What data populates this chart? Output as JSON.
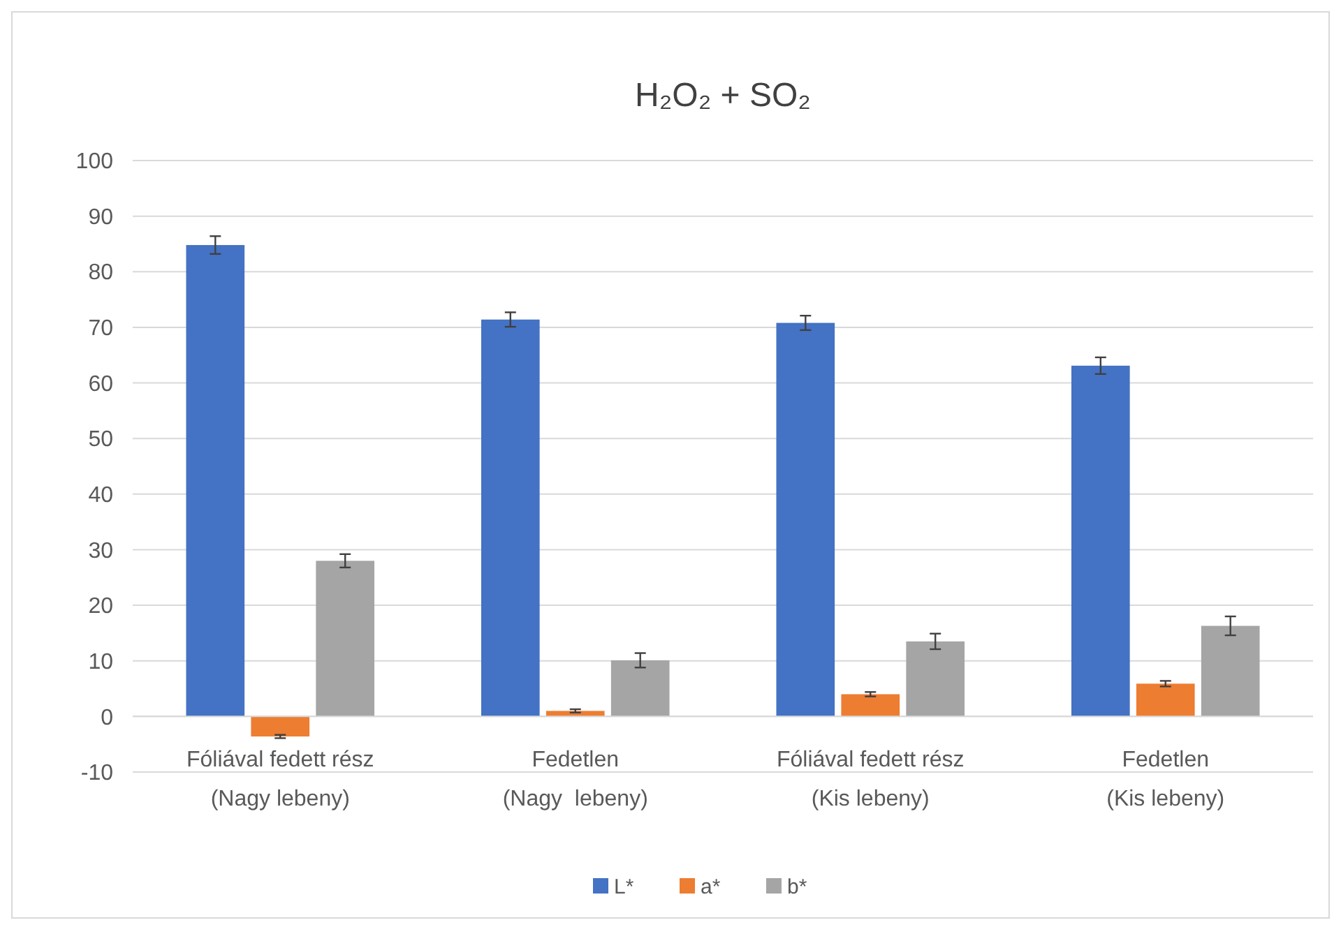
{
  "chart_data": {
    "type": "bar",
    "title": "H₂O₂ + SO₂",
    "categories": [
      "Fóliával fedett rész\n(Nagy lebeny)",
      "Fedetlen\n(Nagy  lebeny)",
      "Fóliával fedett rész\n(Kis lebeny)",
      "Fedetlen\n(Kis lebeny)"
    ],
    "series": [
      {
        "name": "L*",
        "color": "#4472c4",
        "values": [
          84.8,
          71.4,
          70.8,
          63.1
        ],
        "errors": [
          1.6,
          1.3,
          1.3,
          1.5
        ]
      },
      {
        "name": "a*",
        "color": "#ed7d31",
        "values": [
          -3.6,
          1.0,
          4.0,
          5.9
        ],
        "errors": [
          0.3,
          0.3,
          0.4,
          0.5
        ]
      },
      {
        "name": "b*",
        "color": "#a5a5a5",
        "values": [
          28.0,
          10.1,
          13.5,
          16.3
        ],
        "errors": [
          1.2,
          1.3,
          1.4,
          1.7
        ]
      }
    ],
    "ylim": [
      -10,
      100
    ],
    "yticks": [
      -10,
      0,
      10,
      20,
      30,
      40,
      50,
      60,
      70,
      80,
      90,
      100
    ],
    "grid": "y",
    "legend": "bottom"
  }
}
